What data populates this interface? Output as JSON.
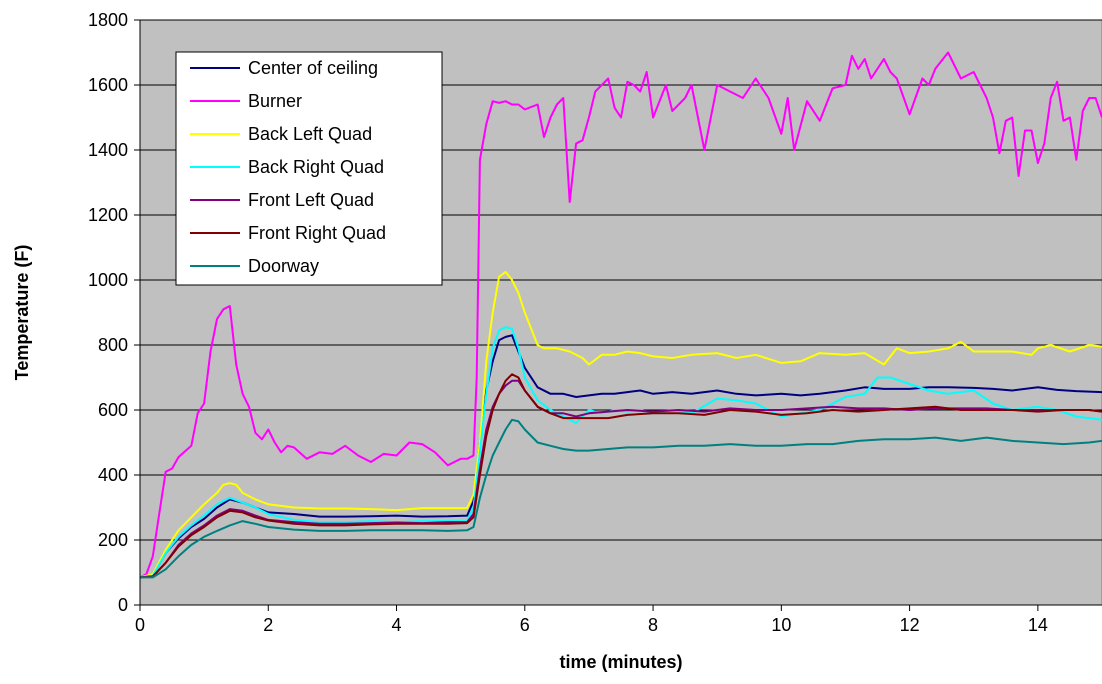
{
  "chart_data": {
    "type": "line",
    "xlabel": "time (minutes)",
    "ylabel": "Temperature (F)",
    "xlim": [
      0,
      15
    ],
    "ylim": [
      0,
      1800
    ],
    "xticks": [
      0,
      2,
      4,
      6,
      8,
      10,
      12,
      14
    ],
    "yticks": [
      0,
      200,
      400,
      600,
      800,
      1000,
      1200,
      1400,
      1600,
      1800
    ],
    "grid": "horizontal",
    "plot_background": "#C0C0C0",
    "legend_position": "top-left",
    "series": [
      {
        "name": "Center of ceiling",
        "color": "#000080",
        "x": [
          0,
          0.2,
          0.4,
          0.6,
          0.8,
          1.0,
          1.2,
          1.4,
          1.6,
          1.8,
          2.0,
          2.4,
          2.8,
          3.2,
          3.6,
          4.0,
          4.4,
          4.8,
          5.1,
          5.2,
          5.3,
          5.4,
          5.5,
          5.6,
          5.7,
          5.8,
          5.9,
          6.0,
          6.2,
          6.4,
          6.6,
          6.8,
          7.0,
          7.2,
          7.4,
          7.6,
          7.8,
          8.0,
          8.3,
          8.6,
          9.0,
          9.3,
          9.6,
          10.0,
          10.3,
          10.6,
          11.0,
          11.3,
          11.6,
          12.0,
          12.3,
          12.6,
          13.0,
          13.3,
          13.6,
          14.0,
          14.3,
          14.6,
          15.0
        ],
        "values": [
          85,
          90,
          160,
          205,
          240,
          265,
          300,
          325,
          315,
          300,
          285,
          280,
          272,
          272,
          273,
          275,
          272,
          273,
          275,
          320,
          500,
          660,
          750,
          815,
          825,
          830,
          780,
          730,
          670,
          650,
          650,
          640,
          645,
          650,
          650,
          655,
          660,
          650,
          655,
          650,
          660,
          650,
          645,
          650,
          645,
          650,
          660,
          670,
          665,
          665,
          670,
          670,
          668,
          665,
          660,
          670,
          662,
          658,
          655
        ]
      },
      {
        "name": "Burner",
        "color": "#FF00FF",
        "x": [
          0,
          0.1,
          0.2,
          0.3,
          0.4,
          0.5,
          0.6,
          0.8,
          0.9,
          1.0,
          1.1,
          1.2,
          1.3,
          1.4,
          1.5,
          1.6,
          1.7,
          1.8,
          1.9,
          2.0,
          2.1,
          2.2,
          2.3,
          2.4,
          2.6,
          2.8,
          3.0,
          3.2,
          3.4,
          3.6,
          3.8,
          4.0,
          4.2,
          4.4,
          4.6,
          4.8,
          4.9,
          5.0,
          5.1,
          5.2,
          5.25,
          5.3,
          5.4,
          5.5,
          5.6,
          5.7,
          5.8,
          5.9,
          6.0,
          6.2,
          6.3,
          6.4,
          6.5,
          6.6,
          6.7,
          6.8,
          6.9,
          7.0,
          7.1,
          7.2,
          7.3,
          7.4,
          7.5,
          7.6,
          7.7,
          7.8,
          7.9,
          8.0,
          8.2,
          8.3,
          8.5,
          8.6,
          8.8,
          9.0,
          9.2,
          9.4,
          9.6,
          9.8,
          10.0,
          10.1,
          10.2,
          10.4,
          10.6,
          10.8,
          11.0,
          11.1,
          11.2,
          11.3,
          11.4,
          11.6,
          11.7,
          11.8,
          12.0,
          12.2,
          12.3,
          12.4,
          12.6,
          12.8,
          13.0,
          13.2,
          13.3,
          13.4,
          13.5,
          13.6,
          13.7,
          13.8,
          13.9,
          14.0,
          14.1,
          14.2,
          14.3,
          14.4,
          14.5,
          14.6,
          14.7,
          14.8,
          14.9,
          15.0
        ],
        "values": [
          85,
          95,
          150,
          280,
          410,
          420,
          455,
          490,
          590,
          620,
          780,
          880,
          910,
          920,
          740,
          650,
          610,
          530,
          510,
          540,
          500,
          470,
          490,
          485,
          450,
          470,
          465,
          490,
          460,
          440,
          465,
          460,
          500,
          495,
          470,
          430,
          440,
          450,
          450,
          460,
          700,
          1370,
          1480,
          1550,
          1545,
          1550,
          1540,
          1540,
          1525,
          1540,
          1440,
          1500,
          1540,
          1560,
          1240,
          1420,
          1430,
          1500,
          1580,
          1600,
          1620,
          1530,
          1500,
          1610,
          1600,
          1580,
          1640,
          1500,
          1600,
          1520,
          1560,
          1600,
          1400,
          1600,
          1580,
          1560,
          1620,
          1560,
          1450,
          1560,
          1400,
          1550,
          1490,
          1590,
          1600,
          1690,
          1650,
          1680,
          1620,
          1680,
          1640,
          1620,
          1510,
          1620,
          1600,
          1650,
          1700,
          1620,
          1640,
          1560,
          1500,
          1390,
          1490,
          1500,
          1320,
          1460,
          1460,
          1360,
          1420,
          1560,
          1610,
          1490,
          1500,
          1370,
          1520,
          1560,
          1560,
          1500
        ],
        "x_override": true
      },
      {
        "name": "Back Left Quad",
        "color": "#FFFF00",
        "x": [
          0,
          0.2,
          0.4,
          0.6,
          0.8,
          1.0,
          1.2,
          1.3,
          1.4,
          1.5,
          1.6,
          1.8,
          2.0,
          2.4,
          2.8,
          3.2,
          3.6,
          4.0,
          4.4,
          4.8,
          5.1,
          5.2,
          5.3,
          5.4,
          5.5,
          5.6,
          5.7,
          5.8,
          5.9,
          6.0,
          6.1,
          6.2,
          6.3,
          6.5,
          6.7,
          6.9,
          7.0,
          7.2,
          7.4,
          7.6,
          7.8,
          8.0,
          8.3,
          8.6,
          9.0,
          9.3,
          9.6,
          10.0,
          10.3,
          10.6,
          11.0,
          11.3,
          11.6,
          11.8,
          12.0,
          12.3,
          12.6,
          12.8,
          13.0,
          13.3,
          13.6,
          13.9,
          14.0,
          14.2,
          14.5,
          14.8,
          15.0
        ],
        "values": [
          85,
          95,
          170,
          230,
          270,
          310,
          345,
          370,
          375,
          370,
          345,
          325,
          310,
          300,
          297,
          297,
          295,
          292,
          298,
          298,
          298,
          340,
          500,
          750,
          900,
          1010,
          1025,
          1000,
          960,
          900,
          850,
          800,
          790,
          790,
          780,
          760,
          740,
          770,
          770,
          780,
          775,
          765,
          760,
          770,
          775,
          760,
          770,
          745,
          750,
          775,
          770,
          775,
          740,
          790,
          775,
          780,
          790,
          810,
          780,
          780,
          780,
          770,
          790,
          800,
          780,
          800,
          795
        ]
      },
      {
        "name": "Back Right Quad",
        "color": "#00FFFF",
        "x": [
          0,
          0.2,
          0.4,
          0.6,
          0.8,
          1.0,
          1.2,
          1.4,
          1.6,
          1.8,
          2.0,
          2.4,
          2.8,
          3.2,
          3.6,
          4.0,
          4.4,
          4.8,
          5.1,
          5.2,
          5.3,
          5.4,
          5.5,
          5.6,
          5.7,
          5.8,
          5.9,
          6.0,
          6.2,
          6.4,
          6.6,
          6.8,
          7.0,
          7.2,
          7.4,
          7.6,
          7.8,
          8.0,
          8.3,
          8.6,
          9.0,
          9.3,
          9.6,
          10.0,
          10.3,
          10.6,
          11.0,
          11.3,
          11.5,
          11.7,
          12.0,
          12.3,
          12.6,
          13.0,
          13.3,
          13.6,
          14.0,
          14.3,
          14.6,
          15.0
        ],
        "values": [
          85,
          90,
          160,
          210,
          245,
          275,
          310,
          330,
          315,
          300,
          280,
          262,
          255,
          255,
          258,
          255,
          258,
          258,
          258,
          300,
          470,
          650,
          790,
          845,
          855,
          850,
          790,
          700,
          630,
          600,
          580,
          560,
          600,
          590,
          600,
          595,
          600,
          590,
          600,
          590,
          635,
          630,
          620,
          580,
          590,
          600,
          640,
          650,
          700,
          700,
          680,
          660,
          650,
          660,
          620,
          600,
          610,
          600,
          580,
          570
        ]
      },
      {
        "name": "Front Left Quad",
        "color": "#800080",
        "x": [
          0,
          0.2,
          0.4,
          0.6,
          0.8,
          1.0,
          1.2,
          1.4,
          1.6,
          1.8,
          2.0,
          2.4,
          2.8,
          3.2,
          3.6,
          4.0,
          4.4,
          4.8,
          5.1,
          5.2,
          5.3,
          5.4,
          5.5,
          5.6,
          5.7,
          5.8,
          5.9,
          6.0,
          6.2,
          6.4,
          6.6,
          6.8,
          7.0,
          7.3,
          7.6,
          8.0,
          8.4,
          8.8,
          9.2,
          9.6,
          10.0,
          10.4,
          10.8,
          11.2,
          11.6,
          12.0,
          12.4,
          12.8,
          13.2,
          13.6,
          14.0,
          14.4,
          14.8,
          15.0
        ],
        "values": [
          85,
          88,
          130,
          185,
          220,
          245,
          275,
          295,
          290,
          275,
          262,
          255,
          250,
          250,
          252,
          254,
          252,
          255,
          255,
          280,
          420,
          540,
          610,
          650,
          675,
          690,
          690,
          660,
          610,
          590,
          590,
          580,
          590,
          595,
          600,
          595,
          600,
          595,
          605,
          600,
          600,
          605,
          610,
          605,
          605,
          600,
          605,
          605,
          605,
          600,
          600,
          600,
          600,
          595
        ]
      },
      {
        "name": "Front Right Quad",
        "color": "#800000",
        "x": [
          0,
          0.2,
          0.4,
          0.6,
          0.8,
          1.0,
          1.2,
          1.4,
          1.6,
          1.8,
          2.0,
          2.4,
          2.8,
          3.2,
          3.6,
          4.0,
          4.4,
          4.8,
          5.1,
          5.2,
          5.3,
          5.4,
          5.5,
          5.6,
          5.7,
          5.8,
          5.9,
          6.0,
          6.2,
          6.4,
          6.6,
          6.8,
          7.0,
          7.3,
          7.6,
          8.0,
          8.4,
          8.8,
          9.2,
          9.6,
          10.0,
          10.4,
          10.8,
          11.2,
          11.6,
          12.0,
          12.4,
          12.8,
          13.2,
          13.6,
          14.0,
          14.4,
          14.8,
          15.0
        ],
        "values": [
          85,
          88,
          130,
          180,
          215,
          240,
          270,
          290,
          285,
          270,
          260,
          250,
          245,
          245,
          248,
          250,
          250,
          250,
          252,
          270,
          400,
          520,
          600,
          650,
          690,
          710,
          700,
          660,
          610,
          590,
          575,
          575,
          575,
          575,
          585,
          590,
          590,
          585,
          600,
          595,
          585,
          590,
          600,
          595,
          600,
          605,
          610,
          600,
          600,
          600,
          595,
          600,
          600,
          595
        ]
      },
      {
        "name": "Doorway",
        "color": "#008080",
        "x": [
          0,
          0.2,
          0.4,
          0.6,
          0.8,
          1.0,
          1.2,
          1.4,
          1.6,
          1.8,
          2.0,
          2.4,
          2.8,
          3.2,
          3.6,
          4.0,
          4.4,
          4.8,
          5.1,
          5.2,
          5.3,
          5.4,
          5.5,
          5.6,
          5.7,
          5.8,
          5.9,
          6.0,
          6.2,
          6.4,
          6.6,
          6.8,
          7.0,
          7.3,
          7.6,
          8.0,
          8.4,
          8.8,
          9.2,
          9.6,
          10.0,
          10.4,
          10.8,
          11.2,
          11.6,
          12.0,
          12.4,
          12.8,
          13.2,
          13.6,
          14.0,
          14.4,
          14.8,
          15.0
        ],
        "values": [
          85,
          85,
          110,
          150,
          185,
          210,
          228,
          245,
          258,
          250,
          240,
          232,
          228,
          228,
          230,
          230,
          230,
          228,
          230,
          240,
          330,
          400,
          460,
          500,
          540,
          570,
          565,
          540,
          500,
          490,
          480,
          475,
          475,
          480,
          485,
          485,
          490,
          490,
          495,
          490,
          490,
          495,
          495,
          505,
          510,
          510,
          515,
          505,
          515,
          505,
          500,
          495,
          500,
          505
        ]
      }
    ]
  }
}
